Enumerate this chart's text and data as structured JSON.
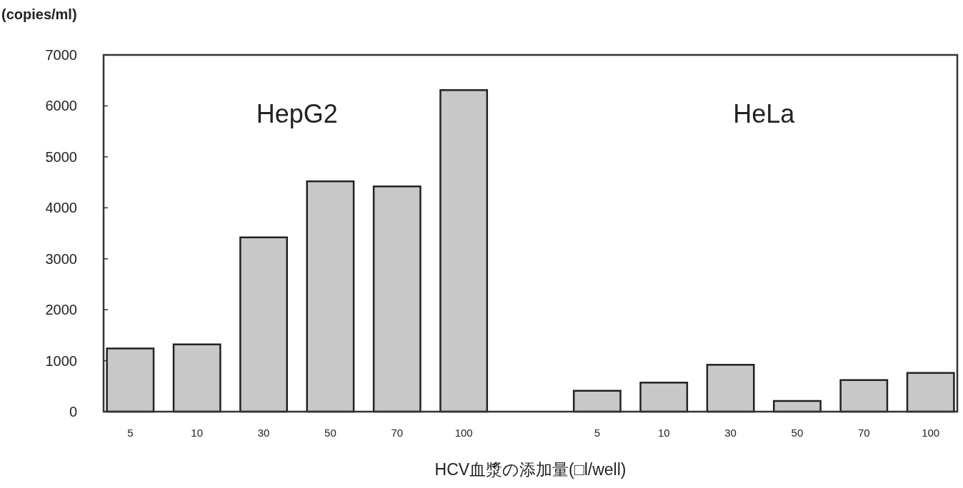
{
  "chart_data": {
    "type": "bar",
    "ylabel": "(copies/ml)",
    "xlabel": "HCV血漿の添加量(□l/well)",
    "categories": [
      "5",
      "10",
      "30",
      "50",
      "70",
      "100",
      null,
      "5",
      "10",
      "30",
      "50",
      "70",
      "100"
    ],
    "values": [
      1240,
      1320,
      3420,
      4520,
      4420,
      6310,
      null,
      410,
      570,
      920,
      210,
      620,
      760
    ],
    "color": "#c8c8c8",
    "ylim": [
      0,
      7000
    ],
    "yticks": [
      0,
      1000,
      2000,
      3000,
      4000,
      5000,
      6000,
      7000
    ],
    "annotations": [
      "HepG2",
      "HeLa"
    ]
  }
}
